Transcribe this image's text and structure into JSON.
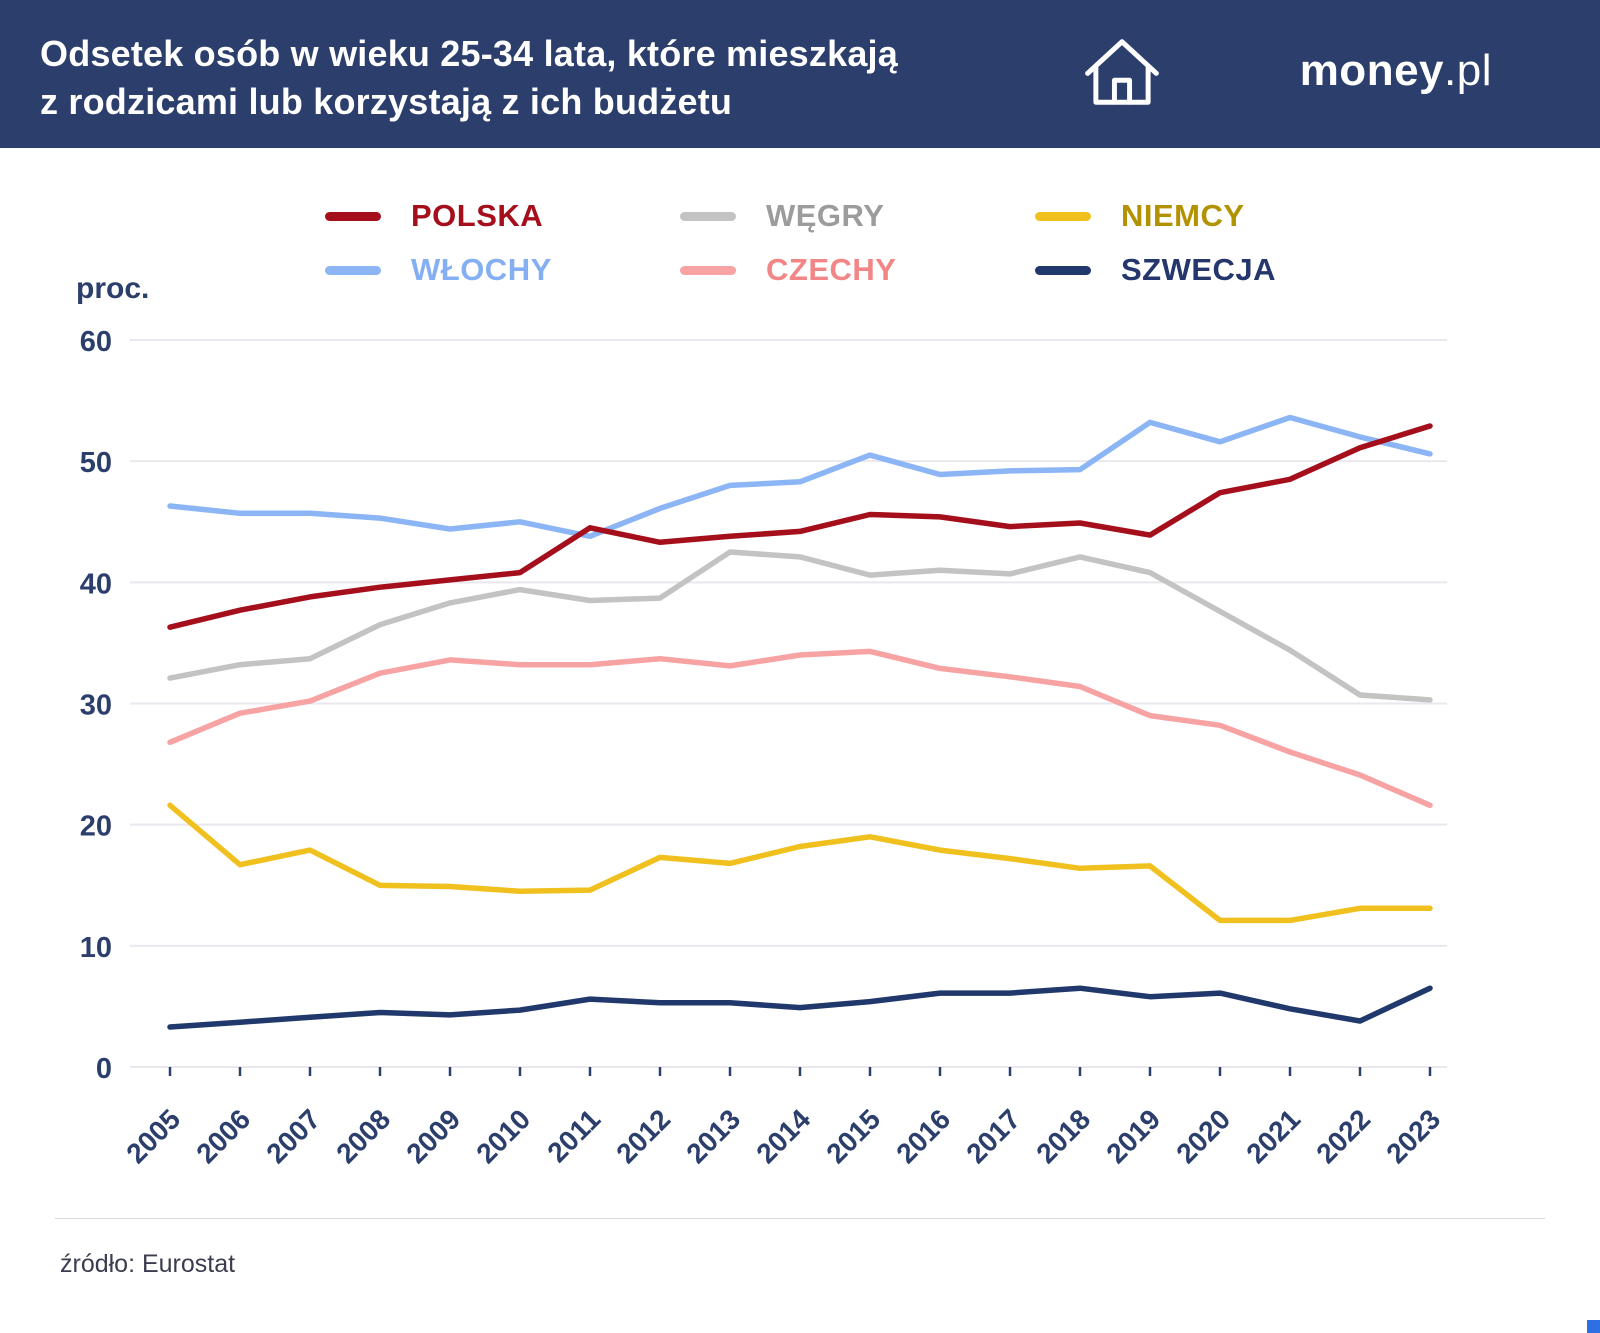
{
  "header": {
    "title_line1": "Odsetek osób w wieku 25-34 lata, które mieszkają",
    "title_line2": "z rodzicami lub korzystają z ich budżetu",
    "logo_bold": "money",
    "logo_suffix": ".pl"
  },
  "legend": [
    {
      "label": "POLSKA",
      "swatch": "#a50f1c",
      "text_color": "#a50f1c"
    },
    {
      "label": "WĘGRY",
      "swatch": "#c3c3c3",
      "text_color": "#9c9c9c"
    },
    {
      "label": "NIEMCY",
      "swatch": "#f0c11e",
      "text_color": "#b29200"
    },
    {
      "label": "WŁOCHY",
      "swatch": "#8cb5f6",
      "text_color": "#84aff2"
    },
    {
      "label": "CZECHY",
      "swatch": "#f7a3a3",
      "text_color": "#f28585"
    },
    {
      "label": "SZWECJA",
      "swatch": "#20386b",
      "text_color": "#24366b"
    }
  ],
  "chart_data": {
    "type": "line",
    "title": "Odsetek osób w wieku 25-34 lata, które mieszkają z rodzicami lub korzystają z ich budżetu",
    "ylabel": "proc.",
    "xlabel": "",
    "ylim": [
      0,
      60
    ],
    "yticks": [
      0,
      10,
      20,
      30,
      40,
      50,
      60
    ],
    "grid": true,
    "legend_position": "top",
    "x": [
      2005,
      2006,
      2007,
      2008,
      2009,
      2010,
      2011,
      2012,
      2013,
      2014,
      2015,
      2016,
      2017,
      2018,
      2019,
      2020,
      2021,
      2022,
      2023
    ],
    "series": [
      {
        "name": "POLSKA",
        "color": "#a50f1c",
        "values": [
          36.3,
          37.7,
          38.8,
          39.6,
          40.2,
          40.8,
          44.5,
          43.3,
          43.8,
          44.2,
          45.6,
          45.4,
          44.6,
          44.9,
          43.9,
          47.4,
          48.5,
          51.1,
          52.9
        ]
      },
      {
        "name": "WŁOCHY",
        "color": "#8cb5f6",
        "values": [
          46.3,
          45.7,
          45.7,
          45.3,
          44.4,
          45.0,
          43.8,
          46.1,
          48.0,
          48.3,
          50.5,
          48.9,
          49.2,
          49.3,
          53.2,
          51.6,
          53.6,
          52.0,
          50.6
        ]
      },
      {
        "name": "WĘGRY",
        "color": "#c3c3c3",
        "values": [
          32.1,
          33.2,
          33.7,
          36.5,
          38.3,
          39.4,
          38.5,
          38.7,
          42.5,
          42.1,
          40.6,
          41.0,
          40.7,
          42.1,
          40.8,
          37.6,
          34.4,
          30.7,
          30.3
        ]
      },
      {
        "name": "CZECHY",
        "color": "#f7a3a3",
        "values": [
          26.8,
          29.2,
          30.2,
          32.5,
          33.6,
          33.2,
          33.2,
          33.7,
          33.1,
          34.0,
          34.3,
          32.9,
          32.2,
          31.4,
          29.0,
          28.2,
          26.0,
          24.1,
          21.6
        ]
      },
      {
        "name": "NIEMCY",
        "color": "#f0c11e",
        "values": [
          21.6,
          16.7,
          17.9,
          15.0,
          14.9,
          14.5,
          14.6,
          17.3,
          16.8,
          18.2,
          19.0,
          17.9,
          17.2,
          16.4,
          16.6,
          12.1,
          12.1,
          13.1,
          13.1
        ]
      },
      {
        "name": "SZWECJA",
        "color": "#20386b",
        "values": [
          3.3,
          3.7,
          4.1,
          4.5,
          4.3,
          4.7,
          5.6,
          5.3,
          5.3,
          4.9,
          5.4,
          6.1,
          6.1,
          6.5,
          5.8,
          6.1,
          4.8,
          3.8,
          6.5
        ]
      }
    ]
  },
  "footer": {
    "source": "źródło: Eurostat"
  }
}
